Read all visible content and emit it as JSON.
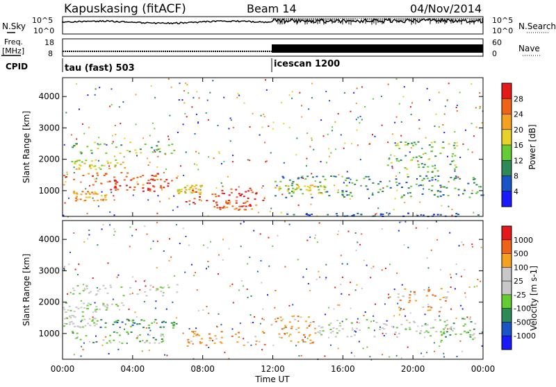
{
  "header": {
    "title": "Kapuskasing (fitACF)",
    "beam": "Beam 14",
    "date": "04/Nov/2014"
  },
  "status_panels": {
    "nsky_label": "N.Sky",
    "nsearch_label": "N.Search",
    "freq_label_1": "Freq.",
    "freq_label_2": "[MHz]",
    "nave_label": "Nave",
    "cpid_label": "CPID",
    "noise_left_ticks": [
      "10^5",
      "10^0"
    ],
    "noise_right_ticks": [
      "10^5",
      "10^0"
    ],
    "freq_ticks": [
      "18",
      "8"
    ],
    "nave_ticks": [
      "60",
      "0"
    ],
    "cpid_segments": [
      {
        "name": "tau (fast) 503",
        "start_hour": 0,
        "end_hour": 12
      },
      {
        "name": "icescan 1200",
        "start_hour": 12,
        "end_hour": 24
      }
    ]
  },
  "axes": {
    "ylabel": "Slant Range [km]",
    "y_ticks": [
      1000,
      2000,
      3000,
      4000
    ],
    "xlabel": "Time UT",
    "x_tick_labels": [
      "00:00",
      "04:00",
      "08:00",
      "12:00",
      "16:00",
      "20:00",
      "00:00"
    ],
    "x_tick_hours": [
      0,
      4,
      8,
      12,
      16,
      20,
      24
    ]
  },
  "chart_data": [
    {
      "type": "heatmap",
      "title": "",
      "xlabel": "Time UT",
      "ylabel": "Slant Range [km]",
      "xlim": [
        0,
        24
      ],
      "ylim": [
        180,
        4600
      ],
      "colorbar": {
        "label": "Power [dB]",
        "ticks": [
          "4",
          "8",
          "12",
          "16",
          "20",
          "24",
          "28"
        ],
        "colors": [
          "#1a1aff",
          "#1a55c8",
          "#2e8b57",
          "#66cc33",
          "#e6d22a",
          "#f5a020",
          "#f06418",
          "#e41a1a"
        ]
      },
      "regions": [
        {
          "t0": 0.5,
          "t1": 6.5,
          "r0": 2200,
          "r1": 2600,
          "level": 3
        },
        {
          "t0": 0.3,
          "t1": 3.5,
          "r0": 1700,
          "r1": 2000,
          "level": 4
        },
        {
          "t0": 0.0,
          "t1": 6.5,
          "r0": 1200,
          "r1": 1600,
          "level": 6
        },
        {
          "t0": 2.5,
          "t1": 6.0,
          "r0": 1000,
          "r1": 1400,
          "level": 7
        },
        {
          "t0": 0.5,
          "t1": 2.5,
          "r0": 700,
          "r1": 1000,
          "level": 5
        },
        {
          "t0": 6.5,
          "t1": 8.0,
          "r0": 900,
          "r1": 1200,
          "level": 4
        },
        {
          "t0": 7.0,
          "t1": 11.5,
          "r0": 600,
          "r1": 1100,
          "level": 7
        },
        {
          "t0": 8.5,
          "t1": 11.0,
          "r0": 400,
          "r1": 700,
          "level": 6
        },
        {
          "t0": 12.0,
          "t1": 24.0,
          "r0": 800,
          "r1": 1500,
          "level": 2
        },
        {
          "t0": 12.0,
          "t1": 15.0,
          "r0": 900,
          "r1": 1200,
          "level": 4
        },
        {
          "t0": 18.5,
          "t1": 22.5,
          "r0": 1600,
          "r1": 2600,
          "level": 3
        },
        {
          "t0": 12.0,
          "t1": 24.0,
          "r0": 200,
          "r1": 300,
          "level": 1
        }
      ]
    },
    {
      "type": "heatmap",
      "title": "",
      "xlabel": "Time UT",
      "ylabel": "Slant Range [km]",
      "xlim": [
        0,
        24
      ],
      "ylim": [
        180,
        4600
      ],
      "colorbar": {
        "label": "Velocity [m s-1]",
        "ticks": [
          "1000",
          "500",
          "100",
          "25",
          "-25",
          "-100",
          "-500",
          "-1000"
        ],
        "colors": [
          "#1a1aff",
          "#1a55c8",
          "#2e8b57",
          "#66cc33",
          "#c8c8c8",
          "#c8c8c8",
          "#f5a020",
          "#f06418",
          "#e41a1a"
        ]
      },
      "regions": [
        {
          "t0": 0.5,
          "t1": 6.5,
          "r0": 2200,
          "r1": 2600,
          "level": 4
        },
        {
          "t0": 0.0,
          "t1": 3.5,
          "r0": 1700,
          "r1": 2000,
          "level": 4
        },
        {
          "t0": 0.0,
          "t1": 2.0,
          "r0": 1200,
          "r1": 1600,
          "level": 4
        },
        {
          "t0": 2.0,
          "t1": 6.5,
          "r0": 1200,
          "r1": 1500,
          "level": 2
        },
        {
          "t0": 0.5,
          "t1": 6.0,
          "r0": 700,
          "r1": 1100,
          "level": 3
        },
        {
          "t0": 7.0,
          "t1": 11.5,
          "r0": 600,
          "r1": 1100,
          "level": 6
        },
        {
          "t0": 12.0,
          "t1": 14.5,
          "r0": 700,
          "r1": 1600,
          "level": 6
        },
        {
          "t0": 14.5,
          "t1": 22.0,
          "r0": 900,
          "r1": 1500,
          "level": 4
        },
        {
          "t0": 19.0,
          "t1": 22.0,
          "r0": 1700,
          "r1": 2500,
          "level": 6
        },
        {
          "t0": 21.5,
          "t1": 23.5,
          "r0": 800,
          "r1": 1500,
          "level": 3
        }
      ]
    }
  ]
}
